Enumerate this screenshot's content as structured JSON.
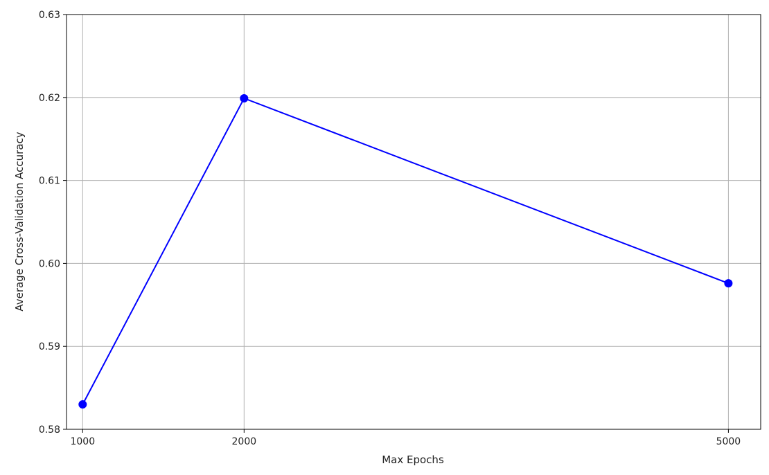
{
  "chart_data": {
    "type": "line",
    "title": "",
    "xlabel": "Max Epochs",
    "ylabel": "Average Cross-Validation Accuracy",
    "x": [
      1000,
      2000,
      5000
    ],
    "xticks": [
      "1000",
      "2000",
      "5000"
    ],
    "ylim": [
      0.58,
      0.63
    ],
    "yticks": [
      "0.58",
      "0.59",
      "0.60",
      "0.61",
      "0.62",
      "0.63"
    ],
    "grid": true,
    "series": [
      {
        "values": [
          0.583,
          0.6199,
          0.5976
        ],
        "color": "#0000ff",
        "marker": "circle"
      }
    ]
  }
}
